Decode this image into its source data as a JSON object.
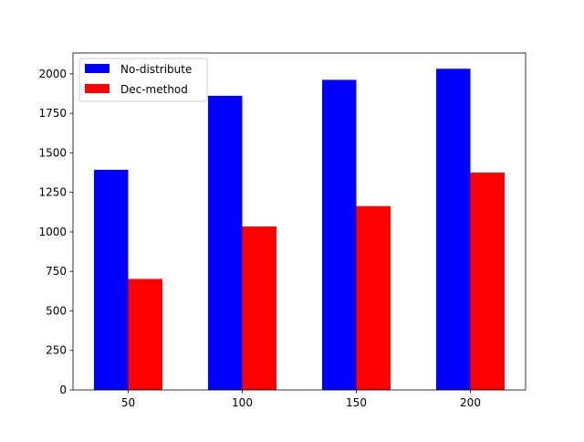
{
  "chart_data": {
    "type": "bar",
    "categories": [
      "50",
      "100",
      "150",
      "200"
    ],
    "series": [
      {
        "name": "No-distribute",
        "values": [
          1393,
          1861,
          1962,
          2032
        ],
        "color": "#0000ff"
      },
      {
        "name": "Dec-method",
        "values": [
          702,
          1034,
          1163,
          1375
        ],
        "color": "#ff0000"
      }
    ],
    "yticks": [
      "0",
      "250",
      "500",
      "750",
      "1000",
      "1250",
      "1500",
      "1750",
      "2000"
    ],
    "ylim": [
      0,
      2132
    ],
    "title": "",
    "xlabel": "",
    "ylabel": "",
    "legend_position": "top-left",
    "grid": false
  }
}
